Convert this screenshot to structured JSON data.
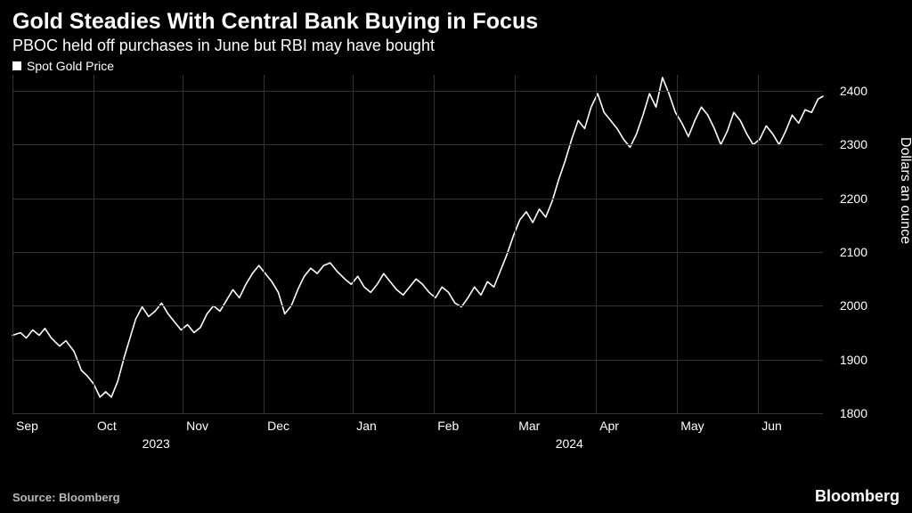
{
  "header": {
    "title": "Gold Steadies With Central Bank Buying in Focus",
    "subtitle": "PBOC held off purchases in June but RBI may have bought"
  },
  "legend": {
    "marker_color": "#ffffff",
    "label": "Spot Gold Price"
  },
  "chart": {
    "type": "line",
    "background_color": "#000000",
    "grid_color": "#333333",
    "line_color": "#ffffff",
    "line_width": 1.6,
    "y_axis": {
      "title": "Dollars an ounce",
      "label_fontsize": 14,
      "min": 1800,
      "max": 2430,
      "ticks": [
        1800,
        1900,
        2000,
        2100,
        2200,
        2300,
        2400
      ]
    },
    "x_axis": {
      "label_fontsize": 14,
      "months": [
        {
          "label": "Sep",
          "pos": 0.0
        },
        {
          "label": "Oct",
          "pos": 0.1
        },
        {
          "label": "Nov",
          "pos": 0.21
        },
        {
          "label": "Dec",
          "pos": 0.31
        },
        {
          "label": "Jan",
          "pos": 0.42
        },
        {
          "label": "Feb",
          "pos": 0.52
        },
        {
          "label": "Mar",
          "pos": 0.62
        },
        {
          "label": "Apr",
          "pos": 0.72
        },
        {
          "label": "May",
          "pos": 0.82
        },
        {
          "label": "Jun",
          "pos": 0.92
        }
      ],
      "groups": [
        {
          "label": "2023",
          "pos": 0.16
        },
        {
          "label": "2024",
          "pos": 0.67
        }
      ],
      "vgrid_positions": [
        0.0,
        0.1,
        0.21,
        0.31,
        0.42,
        0.52,
        0.62,
        0.72,
        0.82,
        0.92
      ]
    },
    "series": [
      {
        "name": "Spot Gold Price",
        "color": "#ffffff",
        "data": [
          [
            0.0,
            1945
          ],
          [
            0.01,
            1950
          ],
          [
            0.017,
            1940
          ],
          [
            0.025,
            1955
          ],
          [
            0.033,
            1945
          ],
          [
            0.04,
            1958
          ],
          [
            0.048,
            1940
          ],
          [
            0.058,
            1925
          ],
          [
            0.066,
            1935
          ],
          [
            0.076,
            1915
          ],
          [
            0.085,
            1880
          ],
          [
            0.092,
            1870
          ],
          [
            0.1,
            1855
          ],
          [
            0.108,
            1830
          ],
          [
            0.115,
            1840
          ],
          [
            0.122,
            1830
          ],
          [
            0.13,
            1860
          ],
          [
            0.138,
            1905
          ],
          [
            0.145,
            1940
          ],
          [
            0.152,
            1975
          ],
          [
            0.16,
            1998
          ],
          [
            0.168,
            1980
          ],
          [
            0.176,
            1990
          ],
          [
            0.184,
            2005
          ],
          [
            0.192,
            1985
          ],
          [
            0.2,
            1970
          ],
          [
            0.208,
            1955
          ],
          [
            0.216,
            1965
          ],
          [
            0.224,
            1950
          ],
          [
            0.232,
            1960
          ],
          [
            0.24,
            1985
          ],
          [
            0.248,
            2000
          ],
          [
            0.256,
            1990
          ],
          [
            0.264,
            2010
          ],
          [
            0.272,
            2030
          ],
          [
            0.28,
            2015
          ],
          [
            0.288,
            2040
          ],
          [
            0.296,
            2060
          ],
          [
            0.304,
            2075
          ],
          [
            0.312,
            2060
          ],
          [
            0.32,
            2045
          ],
          [
            0.328,
            2025
          ],
          [
            0.336,
            1985
          ],
          [
            0.344,
            2000
          ],
          [
            0.352,
            2030
          ],
          [
            0.36,
            2055
          ],
          [
            0.368,
            2070
          ],
          [
            0.376,
            2060
          ],
          [
            0.384,
            2075
          ],
          [
            0.392,
            2080
          ],
          [
            0.4,
            2065
          ],
          [
            0.41,
            2050
          ],
          [
            0.418,
            2040
          ],
          [
            0.426,
            2055
          ],
          [
            0.434,
            2035
          ],
          [
            0.442,
            2025
          ],
          [
            0.45,
            2040
          ],
          [
            0.458,
            2060
          ],
          [
            0.466,
            2045
          ],
          [
            0.474,
            2030
          ],
          [
            0.482,
            2020
          ],
          [
            0.49,
            2035
          ],
          [
            0.498,
            2050
          ],
          [
            0.506,
            2040
          ],
          [
            0.514,
            2025
          ],
          [
            0.522,
            2015
          ],
          [
            0.53,
            2035
          ],
          [
            0.538,
            2025
          ],
          [
            0.546,
            2005
          ],
          [
            0.554,
            1998
          ],
          [
            0.562,
            2015
          ],
          [
            0.57,
            2035
          ],
          [
            0.578,
            2020
          ],
          [
            0.586,
            2045
          ],
          [
            0.594,
            2035
          ],
          [
            0.602,
            2065
          ],
          [
            0.61,
            2095
          ],
          [
            0.618,
            2130
          ],
          [
            0.626,
            2160
          ],
          [
            0.634,
            2175
          ],
          [
            0.642,
            2155
          ],
          [
            0.65,
            2180
          ],
          [
            0.658,
            2165
          ],
          [
            0.666,
            2195
          ],
          [
            0.674,
            2235
          ],
          [
            0.682,
            2270
          ],
          [
            0.69,
            2310
          ],
          [
            0.698,
            2345
          ],
          [
            0.706,
            2330
          ],
          [
            0.714,
            2370
          ],
          [
            0.722,
            2395
          ],
          [
            0.73,
            2360
          ],
          [
            0.738,
            2345
          ],
          [
            0.746,
            2330
          ],
          [
            0.754,
            2310
          ],
          [
            0.762,
            2295
          ],
          [
            0.77,
            2320
          ],
          [
            0.778,
            2355
          ],
          [
            0.786,
            2395
          ],
          [
            0.794,
            2370
          ],
          [
            0.802,
            2425
          ],
          [
            0.81,
            2395
          ],
          [
            0.818,
            2360
          ],
          [
            0.826,
            2340
          ],
          [
            0.834,
            2315
          ],
          [
            0.842,
            2345
          ],
          [
            0.85,
            2370
          ],
          [
            0.858,
            2355
          ],
          [
            0.866,
            2330
          ],
          [
            0.874,
            2300
          ],
          [
            0.882,
            2325
          ],
          [
            0.89,
            2360
          ],
          [
            0.898,
            2345
          ],
          [
            0.906,
            2320
          ],
          [
            0.914,
            2300
          ],
          [
            0.922,
            2310
          ],
          [
            0.93,
            2335
          ],
          [
            0.938,
            2320
          ],
          [
            0.946,
            2300
          ],
          [
            0.954,
            2325
          ],
          [
            0.962,
            2355
          ],
          [
            0.97,
            2340
          ],
          [
            0.978,
            2365
          ],
          [
            0.986,
            2360
          ],
          [
            0.994,
            2385
          ],
          [
            1.0,
            2390
          ]
        ]
      }
    ]
  },
  "footer": {
    "source": "Source: Bloomberg",
    "brand": "Bloomberg"
  }
}
